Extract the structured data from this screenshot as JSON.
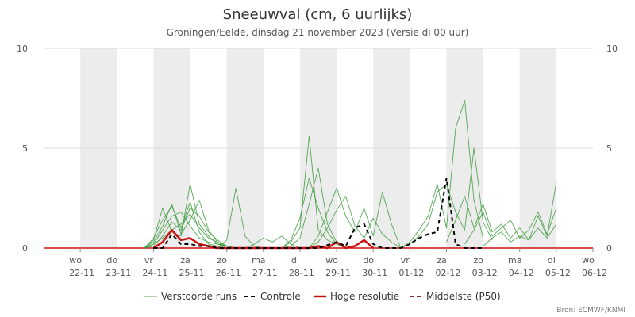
{
  "chart_data": {
    "type": "line",
    "title": "Sneeuwval (cm, 6 uurlijks)",
    "subtitle": "Groningen/Eelde, dinsdag 21 november 2023 (Versie di 00 uur)",
    "credit": "Bron: ECMWF/KNMI",
    "ylim": [
      0,
      10
    ],
    "y_ticks": [
      "0",
      "5",
      "10"
    ],
    "x_range_days": [
      0,
      15
    ],
    "day_labels": [
      {
        "day": "wo",
        "date": "22-11"
      },
      {
        "day": "do",
        "date": "23-11"
      },
      {
        "day": "vr",
        "date": "24-11"
      },
      {
        "day": "za",
        "date": "25-11"
      },
      {
        "day": "zo",
        "date": "26-11"
      },
      {
        "day": "ma",
        "date": "27-11"
      },
      {
        "day": "di",
        "date": "28-11"
      },
      {
        "day": "wo",
        "date": "29-11"
      },
      {
        "day": "do",
        "date": "30-11"
      },
      {
        "day": "vr",
        "date": "01-12"
      },
      {
        "day": "za",
        "date": "02-12"
      },
      {
        "day": "zo",
        "date": "03-12"
      },
      {
        "day": "ma",
        "date": "04-12"
      },
      {
        "day": "di",
        "date": "05-12"
      },
      {
        "day": "wo",
        "date": "06-12"
      }
    ],
    "grid": true,
    "legend_position": "bottom",
    "colors": {
      "ensemble": "#3a9a3a",
      "control": "#000000",
      "high_res": "#cc1111",
      "median": "#8b2a1a",
      "shade": "#ececec"
    },
    "legend": [
      {
        "key": "ensemble",
        "label": "Verstoorde runs",
        "style": "solid-thin"
      },
      {
        "key": "control",
        "label": "Controle",
        "style": "dashed"
      },
      {
        "key": "high_res",
        "label": "Hoge resolutie",
        "style": "solid-thick"
      },
      {
        "key": "median",
        "label": "Middelste (P50)",
        "style": "dashed"
      }
    ],
    "series": [
      {
        "key": "control",
        "x": [
          3.0,
          3.25,
          3.5,
          3.75,
          4.0,
          4.25,
          4.5,
          4.75,
          5.0,
          7.5,
          8.0,
          8.25,
          8.5,
          8.75,
          9.0,
          9.25,
          9.5,
          9.75,
          10.0,
          10.25,
          10.5,
          10.75,
          11.0,
          11.25,
          11.5,
          11.75,
          12.0
        ],
        "y": [
          0,
          0,
          0.7,
          0.2,
          0.2,
          0.1,
          0.1,
          0,
          0,
          0,
          0.3,
          0.1,
          1.0,
          1.2,
          0.2,
          0,
          0,
          0,
          0.2,
          0.5,
          0.7,
          0.8,
          3.5,
          0.2,
          0,
          0,
          0
        ]
      },
      {
        "key": "high_res",
        "x": [
          3.0,
          3.25,
          3.5,
          3.75,
          4.0,
          4.25,
          4.5,
          4.75,
          5.0,
          7.25,
          7.5,
          7.75,
          8.0,
          8.25,
          8.5,
          8.75,
          9.0
        ],
        "y": [
          0,
          0.3,
          0.9,
          0.4,
          0.5,
          0.2,
          0.1,
          0,
          0,
          0,
          0.1,
          0,
          0.3,
          0,
          0.1,
          0.4,
          0
        ]
      },
      {
        "key": "ensemble",
        "x": [
          2.75,
          3.0,
          3.25,
          3.5,
          3.75,
          4.0,
          4.25,
          4.5,
          4.75,
          5.0,
          5.25
        ],
        "y": [
          0,
          0.5,
          1.4,
          2.1,
          1.0,
          2.3,
          0.8,
          0.2,
          0.1,
          0,
          0
        ]
      },
      {
        "key": "ensemble",
        "x": [
          2.75,
          3.0,
          3.25,
          3.5,
          3.75,
          4.0,
          4.25,
          4.5,
          4.75,
          5.0,
          5.25
        ],
        "y": [
          0,
          0.2,
          0.9,
          1.6,
          1.8,
          1.1,
          0.5,
          0.3,
          0.2,
          0.1,
          0
        ]
      },
      {
        "key": "ensemble",
        "x": [
          2.75,
          3.0,
          3.25,
          3.5,
          3.75,
          4.0,
          4.25,
          4.5,
          4.75,
          5.0,
          5.25
        ],
        "y": [
          0,
          0.4,
          2.0,
          0.8,
          0.6,
          3.2,
          1.2,
          0.6,
          0.2,
          0.1,
          0
        ]
      },
      {
        "key": "ensemble",
        "x": [
          2.75,
          3.0,
          3.25,
          3.5,
          3.75,
          4.0,
          4.25,
          4.5,
          4.75,
          5.0,
          5.25
        ],
        "y": [
          0,
          0.1,
          0.6,
          1.3,
          0.9,
          2.0,
          1.6,
          0.8,
          0.4,
          0.1,
          0
        ]
      },
      {
        "key": "ensemble",
        "x": [
          2.75,
          3.0,
          3.25,
          3.5,
          3.75,
          4.0,
          4.25,
          4.5,
          4.75,
          5.0,
          5.25
        ],
        "y": [
          0,
          0.3,
          1.1,
          2.2,
          0.7,
          1.4,
          2.4,
          0.9,
          0.3,
          0,
          0
        ]
      },
      {
        "key": "ensemble",
        "x": [
          2.75,
          3.0,
          3.25,
          3.5,
          3.75,
          4.0,
          4.25,
          4.5,
          4.75,
          5.0,
          5.25
        ],
        "y": [
          0,
          0.2,
          0.5,
          0.9,
          1.2,
          1.7,
          1.0,
          0.5,
          0.3,
          0.1,
          0
        ]
      },
      {
        "key": "ensemble",
        "x": [
          4.75,
          5.0,
          5.25,
          5.5,
          5.75,
          6.0
        ],
        "y": [
          0,
          0.4,
          3.0,
          0.6,
          0.1,
          0
        ]
      },
      {
        "key": "ensemble",
        "x": [
          5.5,
          5.75,
          6.0,
          6.25,
          6.5,
          6.75,
          7.0
        ],
        "y": [
          0,
          0.2,
          0.5,
          0.3,
          0.6,
          0.2,
          0
        ]
      },
      {
        "key": "ensemble",
        "x": [
          6.5,
          6.75,
          7.0,
          7.25,
          7.5,
          7.75,
          8.0,
          8.25
        ],
        "y": [
          0,
          0.3,
          1.0,
          5.6,
          0.9,
          0.4,
          0.2,
          0
        ]
      },
      {
        "key": "ensemble",
        "x": [
          6.5,
          6.75,
          7.0,
          7.25,
          7.5,
          7.75,
          8.0,
          8.25
        ],
        "y": [
          0,
          0.1,
          0.5,
          2.2,
          4.0,
          1.2,
          0.3,
          0
        ]
      },
      {
        "key": "ensemble",
        "x": [
          6.5,
          6.75,
          7.0,
          7.25,
          7.5,
          7.75,
          8.0,
          8.25
        ],
        "y": [
          0,
          0.4,
          1.5,
          3.5,
          2.0,
          0.8,
          0.2,
          0
        ]
      },
      {
        "key": "ensemble",
        "x": [
          7.25,
          7.5,
          7.75,
          8.0,
          8.25,
          8.5,
          8.75,
          9.0,
          9.25,
          9.5,
          9.75
        ],
        "y": [
          0,
          0.6,
          1.8,
          3.0,
          1.6,
          0.8,
          2.0,
          0.6,
          2.8,
          1.2,
          0
        ]
      },
      {
        "key": "ensemble",
        "x": [
          7.25,
          7.5,
          7.75,
          8.0,
          8.25,
          8.5,
          8.75,
          9.0,
          9.25,
          9.5,
          9.75
        ],
        "y": [
          0,
          0.3,
          1.0,
          1.9,
          2.6,
          1.1,
          0.5,
          1.5,
          0.7,
          0.3,
          0
        ]
      },
      {
        "key": "ensemble",
        "x": [
          9.75,
          10.0,
          10.25,
          10.5,
          10.75,
          11.0,
          11.25,
          11.5,
          11.75,
          12.0
        ],
        "y": [
          0,
          0.3,
          0.9,
          1.6,
          3.2,
          1.0,
          6.0,
          7.4,
          2.4,
          0.5
        ]
      },
      {
        "key": "ensemble",
        "x": [
          9.75,
          10.0,
          10.25,
          10.5,
          10.75,
          11.0,
          11.25,
          11.5,
          11.75,
          12.0,
          12.25
        ],
        "y": [
          0,
          0.2,
          0.6,
          1.2,
          2.8,
          3.2,
          1.8,
          0.9,
          5.0,
          1.3,
          0.4
        ]
      },
      {
        "key": "ensemble",
        "x": [
          11.0,
          11.25,
          11.5,
          11.75,
          12.0,
          12.25,
          12.5,
          12.75,
          13.0,
          13.25,
          13.5,
          13.75,
          14.0
        ],
        "y": [
          0.3,
          1.4,
          2.6,
          1.0,
          2.2,
          0.8,
          1.2,
          0.5,
          1.0,
          0.4,
          1.6,
          0.6,
          3.3
        ]
      },
      {
        "key": "ensemble",
        "x": [
          11.5,
          11.75,
          12.0,
          12.25,
          12.5,
          12.75,
          13.0,
          13.25,
          13.5,
          13.75,
          14.0
        ],
        "y": [
          0.2,
          0.9,
          1.8,
          0.6,
          1.0,
          1.4,
          0.5,
          0.9,
          1.8,
          0.7,
          2.0
        ]
      },
      {
        "key": "ensemble",
        "x": [
          12.0,
          12.25,
          12.5,
          12.75,
          13.0,
          13.25,
          13.5,
          13.75,
          14.0
        ],
        "y": [
          0.1,
          0.5,
          0.8,
          0.3,
          0.6,
          0.4,
          1.0,
          0.5,
          1.2
        ]
      }
    ]
  }
}
